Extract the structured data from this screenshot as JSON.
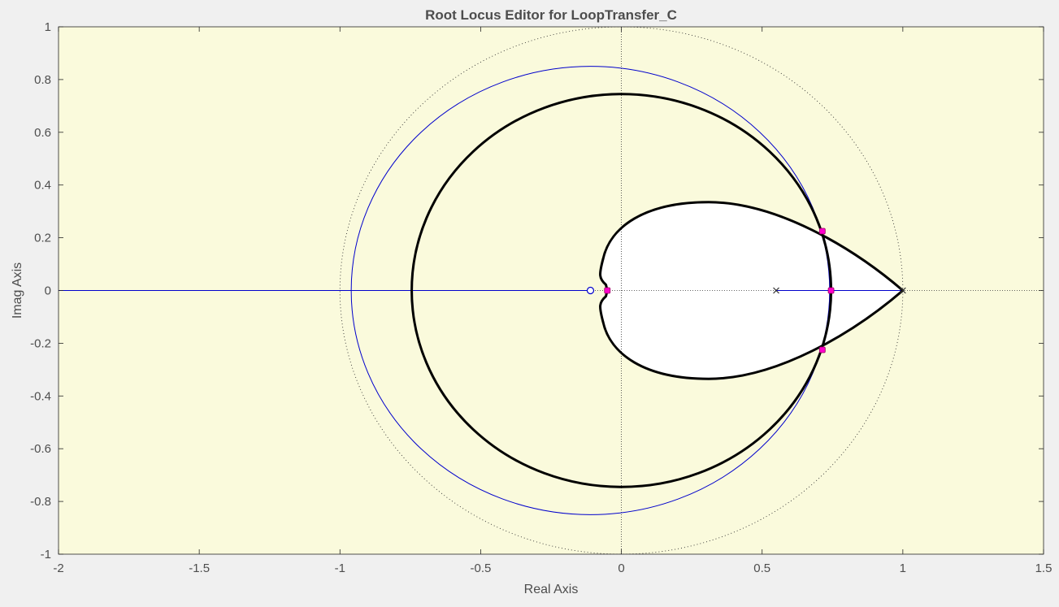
{
  "chart_data": {
    "type": "scatter",
    "title": "Root Locus Editor for LoopTransfer_C",
    "xlabel": "Real Axis",
    "ylabel": "Imag Axis",
    "xlim": [
      -2,
      1.5
    ],
    "ylim": [
      -1,
      1
    ],
    "x_ticks": [
      "-2",
      "-1.5",
      "-1",
      "-0.5",
      "0",
      "0.5",
      "1",
      "1.5"
    ],
    "y_ticks": [
      "1",
      "0.8",
      "0.6",
      "0.4",
      "0.2",
      "0",
      "-0.2",
      "-0.4",
      "-0.6",
      "-0.8",
      "-1"
    ],
    "grid": false,
    "colors": {
      "background": "#fafadc",
      "figure": "#f0f0f0",
      "locus_branch": "#0000cc",
      "stability_region": "#000000",
      "closed_loop_pole": "#ff00cc",
      "unit_circle": "#000000"
    },
    "unit_circle": {
      "center": [
        0,
        0
      ],
      "radius": 1,
      "style": "dotted"
    },
    "locus_circle": {
      "center": [
        -0.11,
        0
      ],
      "radius": 0.85
    },
    "locus_real_axis": [
      [
        -2,
        0
      ],
      [
        -0.11,
        0
      ],
      [
        0.55,
        0
      ],
      [
        1,
        0
      ]
    ],
    "outer_boundary_radius": 0.745,
    "cardioid_boundary": {
      "leftmost": [
        -0.07,
        0
      ],
      "top": [
        0.31,
        0.335
      ],
      "bottom": [
        0.31,
        -0.335
      ],
      "cusp": [
        1,
        0
      ]
    },
    "open_loop_poles": [
      {
        "x": 0.55,
        "y": 0
      },
      {
        "x": 1.0,
        "y": 0
      }
    ],
    "open_loop_zeros": [
      {
        "x": -0.11,
        "y": 0
      }
    ],
    "closed_loop_poles": [
      {
        "x": 0.714,
        "y": 0.225
      },
      {
        "x": 0.714,
        "y": -0.225
      },
      {
        "x": 0.745,
        "y": 0
      },
      {
        "x": -0.05,
        "y": 0
      }
    ]
  }
}
